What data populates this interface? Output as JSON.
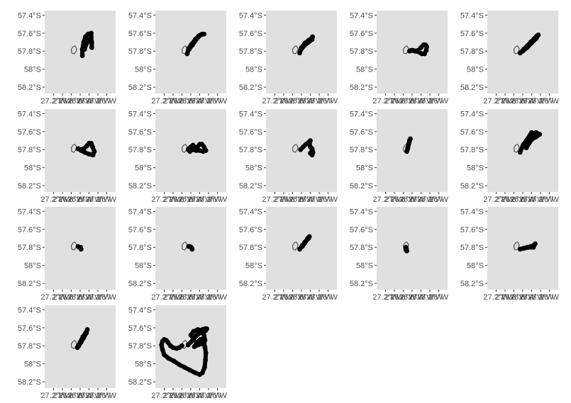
{
  "chart_data": {
    "type": "scatter",
    "facets": 17,
    "layout": {
      "columns": 5,
      "rows": 4
    },
    "panel_background": "#e0e0e0",
    "point_color": "#000000",
    "point_size": "large",
    "island_outline_color": "#555555",
    "grid": false,
    "title": "",
    "xlabel": "",
    "ylabel": "",
    "xlim": [
      -27.4,
      -25.8
    ],
    "ylim": [
      -58.27,
      -57.35
    ],
    "y_ticks": [
      {
        "value": -57.4,
        "label": "57.4°S"
      },
      {
        "value": -57.6,
        "label": "57.6°S"
      },
      {
        "value": -57.8,
        "label": "57.8°S"
      },
      {
        "value": -58.0,
        "label": "58°S"
      },
      {
        "value": -58.2,
        "label": "58.2°S"
      }
    ],
    "x_ticks": [
      {
        "value": -27.2,
        "label": "27.2°W"
      },
      {
        "value": -27.0,
        "label": "27°W"
      },
      {
        "value": -26.8,
        "label": "26.8°W"
      },
      {
        "value": -26.6,
        "label": "26.6°W"
      },
      {
        "value": -26.4,
        "label": "26.4°W"
      },
      {
        "value": -26.2,
        "label": "26.2°W"
      },
      {
        "value": -26.0,
        "label": "26°W"
      }
    ],
    "island_outline": [
      [
        -26.72,
        -57.74
      ],
      [
        -26.76,
        -57.75
      ],
      [
        -26.8,
        -57.78
      ],
      [
        -26.79,
        -57.82
      ],
      [
        -26.74,
        -57.83
      ],
      [
        -26.69,
        -57.8
      ],
      [
        -26.68,
        -57.77
      ],
      [
        -26.72,
        -57.74
      ]
    ],
    "tracks": [
      [
        [
          -26.55,
          -57.85
        ],
        [
          -26.55,
          -57.78
        ],
        [
          -26.52,
          -57.7
        ],
        [
          -26.48,
          -57.64
        ],
        [
          -26.42,
          -57.61
        ],
        [
          -26.35,
          -57.6
        ],
        [
          -26.35,
          -57.65
        ],
        [
          -26.34,
          -57.71
        ],
        [
          -26.34,
          -57.76
        ],
        [
          -26.34,
          -57.7
        ],
        [
          -26.4,
          -57.67
        ],
        [
          -26.46,
          -57.72
        ],
        [
          -26.5,
          -57.78
        ]
      ],
      [
        [
          -26.68,
          -57.83
        ],
        [
          -26.65,
          -57.77
        ],
        [
          -26.58,
          -57.72
        ],
        [
          -26.5,
          -57.67
        ],
        [
          -26.42,
          -57.63
        ],
        [
          -26.35,
          -57.61
        ],
        [
          -26.3,
          -57.61
        ],
        [
          -26.38,
          -57.62
        ],
        [
          -26.46,
          -57.66
        ],
        [
          -26.56,
          -57.73
        ],
        [
          -26.64,
          -57.78
        ]
      ],
      [
        [
          -26.64,
          -57.82
        ],
        [
          -26.6,
          -57.76
        ],
        [
          -26.52,
          -57.71
        ],
        [
          -26.44,
          -57.68
        ],
        [
          -26.38,
          -57.66
        ],
        [
          -26.35,
          -57.64
        ],
        [
          -26.36,
          -57.67
        ],
        [
          -26.44,
          -57.7
        ],
        [
          -26.54,
          -57.74
        ],
        [
          -26.62,
          -57.79
        ]
      ],
      [
        [
          -26.66,
          -57.8
        ],
        [
          -26.58,
          -57.79
        ],
        [
          -26.52,
          -57.8
        ],
        [
          -26.45,
          -57.81
        ],
        [
          -26.38,
          -57.83
        ],
        [
          -26.32,
          -57.83
        ],
        [
          -26.28,
          -57.79
        ],
        [
          -26.27,
          -57.75
        ],
        [
          -26.3,
          -57.73
        ],
        [
          -26.34,
          -57.73
        ],
        [
          -26.4,
          -57.76
        ],
        [
          -26.46,
          -57.79
        ],
        [
          -26.54,
          -57.8
        ],
        [
          -26.62,
          -57.79
        ]
      ],
      [
        [
          -26.66,
          -57.82
        ],
        [
          -26.58,
          -57.78
        ],
        [
          -26.5,
          -57.74
        ],
        [
          -26.42,
          -57.7
        ],
        [
          -26.34,
          -57.66
        ],
        [
          -26.28,
          -57.63
        ],
        [
          -26.25,
          -57.62
        ],
        [
          -26.3,
          -57.66
        ],
        [
          -26.4,
          -57.71
        ],
        [
          -26.5,
          -57.76
        ],
        [
          -26.6,
          -57.8
        ]
      ],
      [
        [
          -26.65,
          -57.79
        ],
        [
          -26.58,
          -57.8
        ],
        [
          -26.52,
          -57.79
        ],
        [
          -26.45,
          -57.76
        ],
        [
          -26.4,
          -57.73
        ],
        [
          -26.35,
          -57.73
        ],
        [
          -26.32,
          -57.77
        ],
        [
          -26.28,
          -57.82
        ],
        [
          -26.31,
          -57.86
        ],
        [
          -26.4,
          -57.85
        ],
        [
          -26.5,
          -57.83
        ],
        [
          -26.58,
          -57.81
        ],
        [
          -26.64,
          -57.79
        ]
      ],
      [
        [
          -26.66,
          -57.8
        ],
        [
          -26.6,
          -57.77
        ],
        [
          -26.55,
          -57.75
        ],
        [
          -26.5,
          -57.78
        ],
        [
          -26.45,
          -57.77
        ],
        [
          -26.4,
          -57.74
        ],
        [
          -26.35,
          -57.74
        ],
        [
          -26.3,
          -57.77
        ],
        [
          -26.26,
          -57.81
        ],
        [
          -26.32,
          -57.82
        ],
        [
          -26.4,
          -57.81
        ],
        [
          -26.48,
          -57.81
        ],
        [
          -26.56,
          -57.8
        ],
        [
          -26.62,
          -57.82
        ]
      ],
      [
        [
          -26.62,
          -57.8
        ],
        [
          -26.56,
          -57.77
        ],
        [
          -26.5,
          -57.74
        ],
        [
          -26.44,
          -57.72
        ],
        [
          -26.4,
          -57.7
        ],
        [
          -26.42,
          -57.74
        ],
        [
          -26.4,
          -57.77
        ],
        [
          -26.36,
          -57.79
        ],
        [
          -26.34,
          -57.83
        ],
        [
          -26.36,
          -57.86
        ],
        [
          -26.4,
          -57.84
        ],
        [
          -26.36,
          -57.81
        ]
      ],
      [
        [
          -26.72,
          -57.82
        ],
        [
          -26.7,
          -57.78
        ],
        [
          -26.68,
          -57.74
        ],
        [
          -26.66,
          -57.7
        ],
        [
          -26.64,
          -57.68
        ],
        [
          -26.67,
          -57.73
        ],
        [
          -26.7,
          -57.79
        ]
      ],
      [
        [
          -26.66,
          -57.83
        ],
        [
          -26.6,
          -57.76
        ],
        [
          -26.52,
          -57.71
        ],
        [
          -26.44,
          -57.67
        ],
        [
          -26.38,
          -57.63
        ],
        [
          -26.3,
          -57.61
        ],
        [
          -26.22,
          -57.63
        ],
        [
          -26.3,
          -57.66
        ],
        [
          -26.38,
          -57.68
        ],
        [
          -26.46,
          -57.73
        ],
        [
          -26.52,
          -57.78
        ],
        [
          -26.58,
          -57.74
        ],
        [
          -26.52,
          -57.7
        ],
        [
          -26.44,
          -57.64
        ],
        [
          -26.4,
          -57.61
        ]
      ],
      [
        [
          -26.65,
          -57.79
        ],
        [
          -26.62,
          -57.8
        ],
        [
          -26.59,
          -57.8
        ],
        [
          -26.58,
          -57.82
        ]
      ],
      [
        [
          -26.65,
          -57.79
        ],
        [
          -26.62,
          -57.79
        ],
        [
          -26.59,
          -57.8
        ],
        [
          -26.57,
          -57.82
        ]
      ],
      [
        [
          -26.64,
          -57.82
        ],
        [
          -26.58,
          -57.78
        ],
        [
          -26.52,
          -57.74
        ],
        [
          -26.48,
          -57.72
        ],
        [
          -26.44,
          -57.7
        ],
        [
          -26.42,
          -57.68
        ],
        [
          -26.46,
          -57.7
        ],
        [
          -26.52,
          -57.75
        ],
        [
          -26.58,
          -57.79
        ]
      ],
      [
        [
          -26.74,
          -57.8
        ],
        [
          -26.73,
          -57.82
        ],
        [
          -26.72,
          -57.84
        ],
        [
          -26.74,
          -57.83
        ]
      ],
      [
        [
          -26.66,
          -57.82
        ],
        [
          -26.58,
          -57.81
        ],
        [
          -26.5,
          -57.8
        ],
        [
          -26.42,
          -57.79
        ],
        [
          -26.36,
          -57.78
        ],
        [
          -26.32,
          -57.76
        ],
        [
          -26.36,
          -57.8
        ],
        [
          -26.46,
          -57.8
        ],
        [
          -26.56,
          -57.81
        ]
      ],
      [
        [
          -26.66,
          -57.82
        ],
        [
          -26.6,
          -57.76
        ],
        [
          -26.54,
          -57.7
        ],
        [
          -26.48,
          -57.66
        ],
        [
          -26.44,
          -57.62
        ],
        [
          -26.46,
          -57.66
        ],
        [
          -26.52,
          -57.71
        ],
        [
          -26.58,
          -57.76
        ],
        [
          -26.63,
          -57.8
        ]
      ],
      [
        [
          -26.66,
          -57.79
        ],
        [
          -26.56,
          -57.74
        ],
        [
          -26.48,
          -57.69
        ],
        [
          -26.4,
          -57.65
        ],
        [
          -26.34,
          -57.62
        ],
        [
          -26.28,
          -57.61
        ],
        [
          -26.24,
          -57.61
        ],
        [
          -26.26,
          -57.63
        ],
        [
          -26.36,
          -57.65
        ],
        [
          -26.46,
          -57.68
        ],
        [
          -26.54,
          -57.72
        ],
        [
          -26.6,
          -57.68
        ],
        [
          -26.54,
          -57.64
        ],
        [
          -26.44,
          -57.62
        ],
        [
          -26.36,
          -57.63
        ],
        [
          -26.3,
          -57.68
        ],
        [
          -26.28,
          -57.74
        ],
        [
          -26.36,
          -57.78
        ],
        [
          -26.44,
          -57.79
        ],
        [
          -26.52,
          -57.81
        ],
        [
          -26.46,
          -57.76
        ],
        [
          -26.38,
          -57.73
        ],
        [
          -26.32,
          -57.72
        ],
        [
          -26.3,
          -57.76
        ],
        [
          -26.28,
          -57.82
        ],
        [
          -26.26,
          -57.88
        ],
        [
          -26.27,
          -57.96
        ],
        [
          -26.29,
          -58.04
        ],
        [
          -26.34,
          -58.1
        ],
        [
          -26.4,
          -58.12
        ],
        [
          -26.5,
          -58.1
        ],
        [
          -26.62,
          -58.07
        ],
        [
          -26.74,
          -58.04
        ],
        [
          -26.86,
          -58.01
        ],
        [
          -26.98,
          -57.97
        ],
        [
          -27.1,
          -57.94
        ],
        [
          -27.2,
          -57.9
        ],
        [
          -27.24,
          -57.84
        ],
        [
          -27.26,
          -57.79
        ],
        [
          -27.24,
          -57.75
        ],
        [
          -27.2,
          -57.73
        ],
        [
          -27.15,
          -57.74
        ],
        [
          -27.12,
          -57.76
        ],
        [
          -27.06,
          -57.8
        ],
        [
          -27.0,
          -57.82
        ],
        [
          -26.92,
          -57.83
        ],
        [
          -26.86,
          -57.82
        ],
        [
          -26.8,
          -57.8
        ]
      ]
    ]
  }
}
